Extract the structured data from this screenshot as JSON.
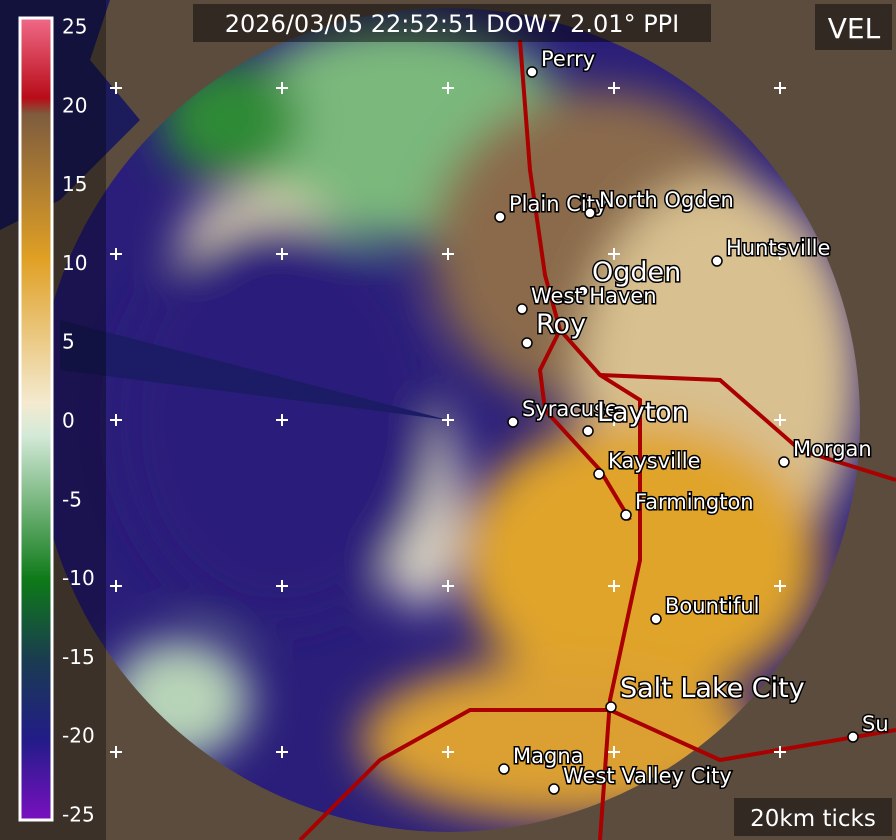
{
  "header": {
    "timestamp": "2026/03/05 22:52:51 DOW7 2.01° PPI",
    "product": "VEL",
    "scale_note": "20km ticks"
  },
  "colorbar": {
    "range": [
      -25,
      25
    ],
    "ticks": [
      25,
      20,
      15,
      10,
      5,
      0,
      -5,
      -10,
      -15,
      -20,
      -25
    ]
  },
  "cities": [
    {
      "label": "Perry"
    },
    {
      "label": "Plain City"
    },
    {
      "label": "North Ogden"
    },
    {
      "label": "Huntsville"
    },
    {
      "label": "Ogden"
    },
    {
      "label": "West Haven"
    },
    {
      "label": "Roy"
    },
    {
      "label": "Syracuse"
    },
    {
      "label": "Layton"
    },
    {
      "label": "Kaysville"
    },
    {
      "label": "Morgan"
    },
    {
      "label": "Farmington"
    },
    {
      "label": "Bountiful"
    },
    {
      "label": "Salt Lake City"
    },
    {
      "label": "Magna"
    },
    {
      "label": "West Valley City"
    },
    {
      "label": "Su"
    }
  ]
}
